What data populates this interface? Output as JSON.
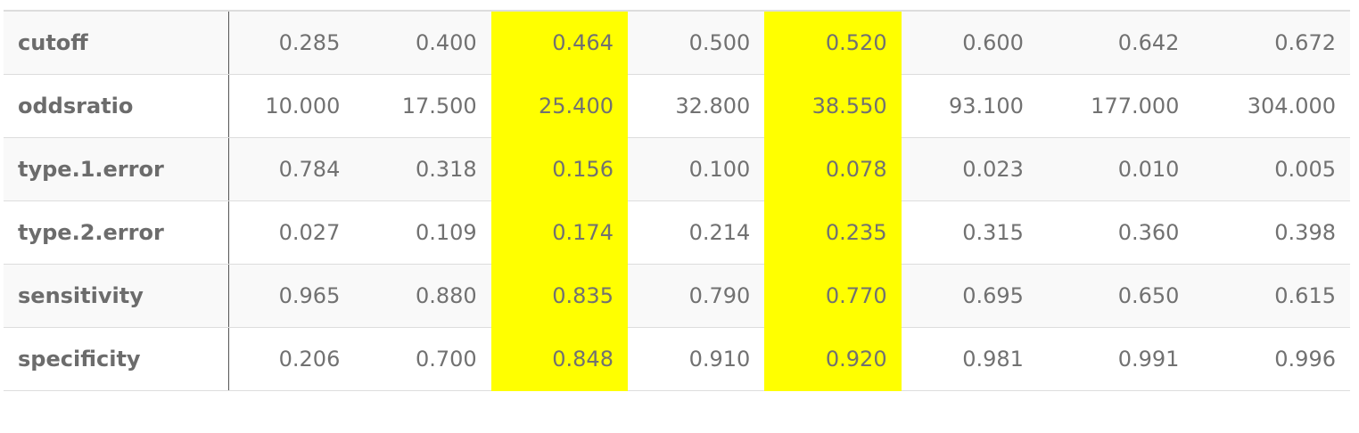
{
  "table": {
    "highlight_color": "#ffff00",
    "highlight_columns": [
      2,
      4
    ],
    "rows": [
      {
        "label": "cutoff",
        "values": [
          "0.285",
          "0.400",
          "0.464",
          "0.500",
          "0.520",
          "0.600",
          "0.642",
          "0.672"
        ]
      },
      {
        "label": "oddsratio",
        "values": [
          "10.000",
          "17.500",
          "25.400",
          "32.800",
          "38.550",
          "93.100",
          "177.000",
          "304.000"
        ]
      },
      {
        "label": "type.1.error",
        "values": [
          "0.784",
          "0.318",
          "0.156",
          "0.100",
          "0.078",
          "0.023",
          "0.010",
          "0.005"
        ]
      },
      {
        "label": "type.2.error",
        "values": [
          "0.027",
          "0.109",
          "0.174",
          "0.214",
          "0.235",
          "0.315",
          "0.360",
          "0.398"
        ]
      },
      {
        "label": "sensitivity",
        "values": [
          "0.965",
          "0.880",
          "0.835",
          "0.790",
          "0.770",
          "0.695",
          "0.650",
          "0.615"
        ]
      },
      {
        "label": "specificity",
        "values": [
          "0.206",
          "0.700",
          "0.848",
          "0.910",
          "0.920",
          "0.981",
          "0.991",
          "0.996"
        ]
      }
    ]
  }
}
